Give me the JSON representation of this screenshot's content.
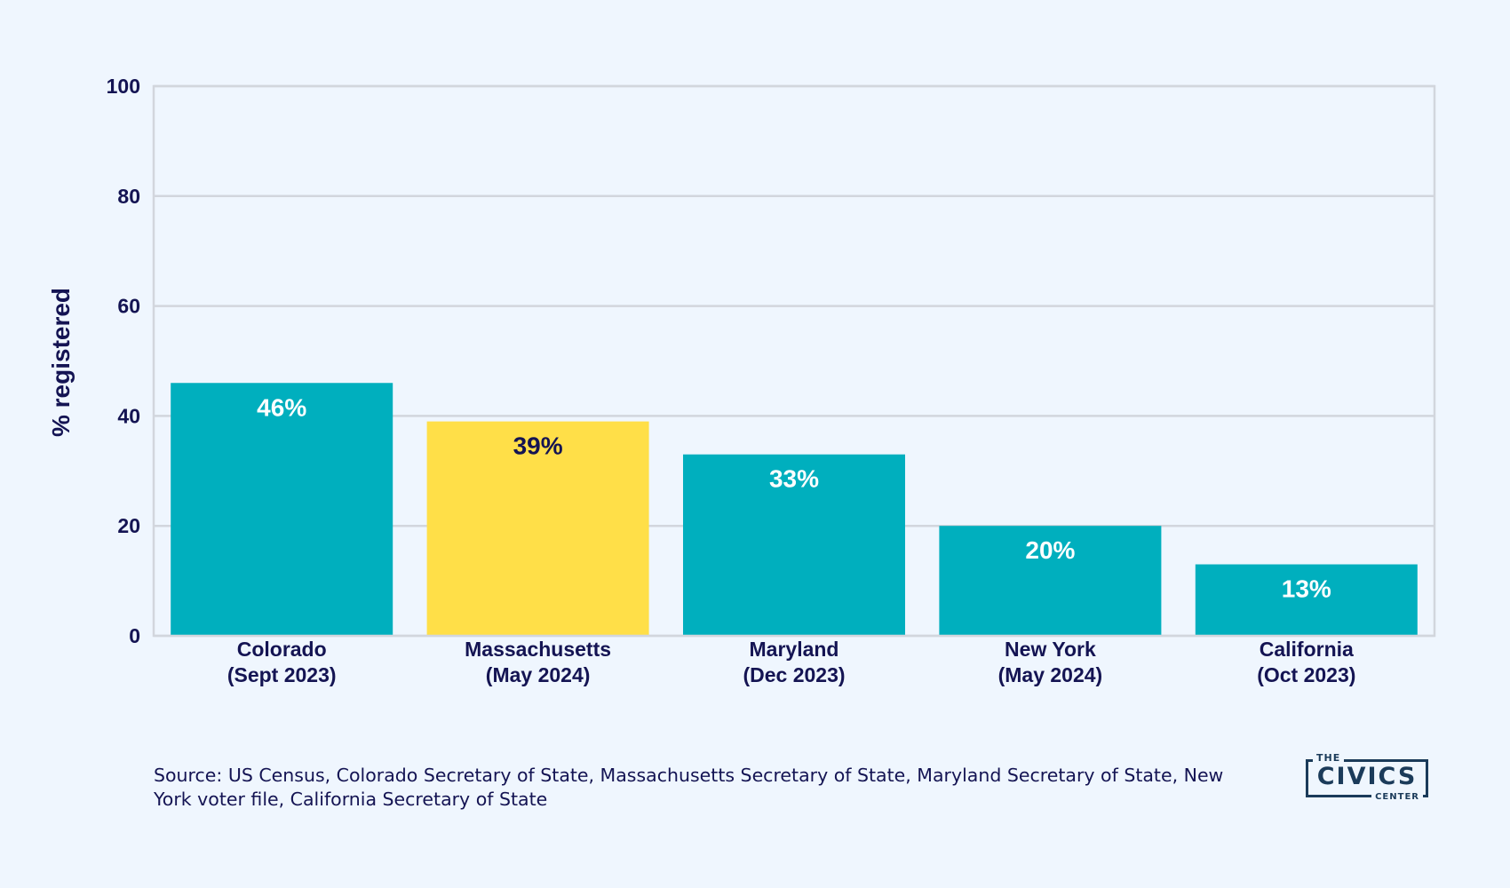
{
  "chart_data": {
    "type": "bar",
    "title": "",
    "xlabel": "",
    "ylabel": "% registered",
    "ylim": [
      0,
      100
    ],
    "yticks": [
      "0",
      "20",
      "40",
      "60",
      "80",
      "100"
    ],
    "grid": true,
    "categories": [
      [
        "Colorado",
        "(Sept 2023)"
      ],
      [
        "Massachusetts",
        "(May 2024)"
      ],
      [
        "Maryland",
        "(Dec 2023)"
      ],
      [
        "New York",
        "(May 2024)"
      ],
      [
        "California",
        "(Oct 2023)"
      ]
    ],
    "values": [
      46,
      39,
      33,
      20,
      13
    ],
    "value_labels": [
      "46%",
      "39%",
      "33%",
      "20%",
      "13%"
    ],
    "highlight_index": 1,
    "colors": {
      "bar": "#00afbe",
      "highlight": "#ffdf48",
      "label_on_bar": "#ffffff",
      "label_on_highlight": "#141453",
      "text": "#141453",
      "grid": "#d2d6dd",
      "background": "#eff6fe"
    }
  },
  "source": "Source: US Census, Colorado Secretary of State, Massachusetts Secretary of State, Maryland Secretary of State, New York voter file, California Secretary of State",
  "logo": {
    "top": "THE",
    "main": "CIVICS",
    "bottom": "CENTER"
  }
}
